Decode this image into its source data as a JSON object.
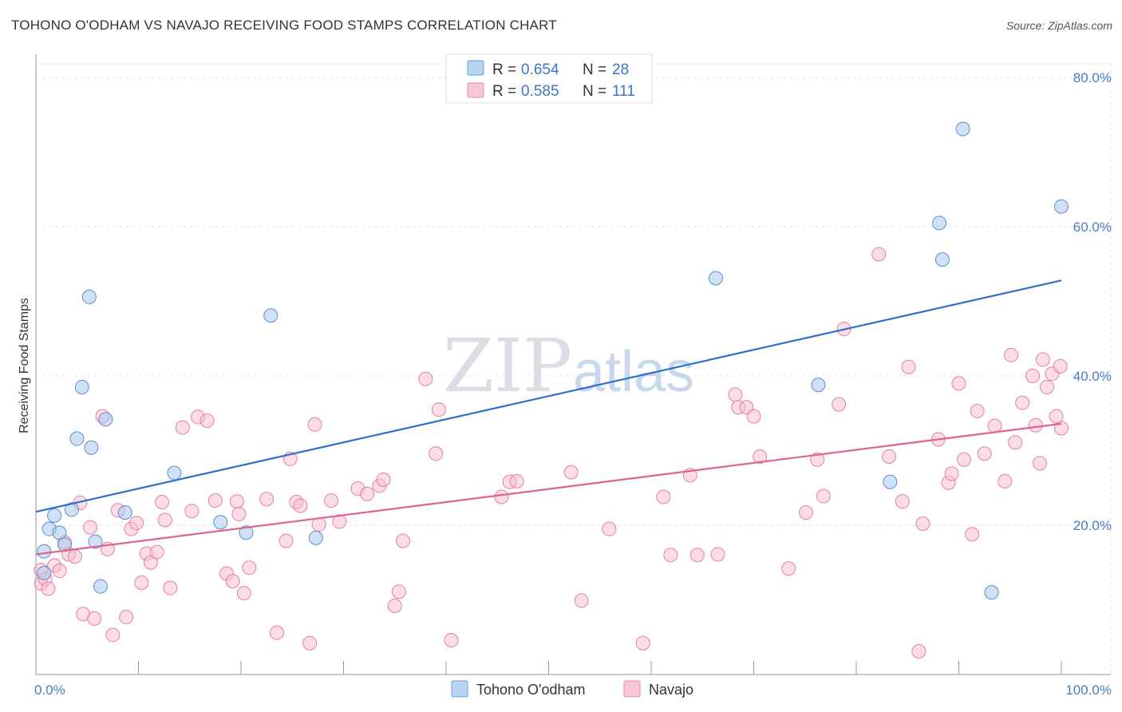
{
  "title": "TOHONO O'ODHAM VS NAVAJO RECEIVING FOOD STAMPS CORRELATION CHART",
  "source": "Source: ZipAtlas.com",
  "watermark": {
    "zip": "ZIP",
    "atlas": "atlas"
  },
  "legend": {
    "rows": [
      {
        "r_label": "R =",
        "r_value": "0.654",
        "n_label": "N =",
        "n_value": "28"
      },
      {
        "r_label": "R =",
        "r_value": "0.585",
        "n_label": "N =",
        "n_value": "111"
      }
    ]
  },
  "chart_data": {
    "type": "scatter",
    "title": "TOHONO O'ODHAM VS NAVAJO RECEIVING FOOD STAMPS CORRELATION CHART",
    "xlabel": "",
    "ylabel": "Receiving Food Stamps",
    "xlim": [
      0,
      100
    ],
    "ylim": [
      0,
      80
    ],
    "x_tick_labels": [
      "0.0%",
      "100.0%"
    ],
    "y_ticks": [
      20,
      40,
      60,
      80
    ],
    "y_tick_labels": [
      "20.0%",
      "40.0%",
      "60.0%",
      "80.0%"
    ],
    "grid": true,
    "legend_position": "top-center",
    "series": [
      {
        "name": "Tohono O'odham",
        "color": "#a9c8ee",
        "stroke": "#5a8fd0",
        "line_color": "#2f6fcc",
        "r": 0.654,
        "n": 28,
        "trend": {
          "x": [
            0,
            100
          ],
          "y": [
            21.8,
            52.8
          ]
        },
        "points": [
          [
            0.8,
            13.6
          ],
          [
            0.8,
            16.5
          ],
          [
            1.3,
            19.5
          ],
          [
            1.8,
            21.3
          ],
          [
            2.3,
            19.0
          ],
          [
            2.8,
            17.4
          ],
          [
            3.5,
            22.1
          ],
          [
            4.0,
            31.6
          ],
          [
            4.5,
            38.5
          ],
          [
            5.2,
            50.6
          ],
          [
            5.4,
            30.4
          ],
          [
            5.8,
            17.8
          ],
          [
            6.3,
            11.8
          ],
          [
            6.8,
            34.2
          ],
          [
            8.7,
            21.7
          ],
          [
            13.5,
            27.0
          ],
          [
            18.0,
            20.4
          ],
          [
            20.5,
            19.0
          ],
          [
            22.9,
            48.1
          ],
          [
            27.3,
            18.3
          ],
          [
            66.3,
            53.1
          ],
          [
            76.3,
            38.8
          ],
          [
            83.3,
            25.8
          ],
          [
            88.1,
            60.5
          ],
          [
            88.4,
            55.6
          ],
          [
            90.4,
            73.1
          ],
          [
            93.2,
            11.0
          ],
          [
            100.0,
            62.7
          ]
        ]
      },
      {
        "name": "Navajo",
        "color": "#f7c1d2",
        "stroke": "#e87ea1",
        "line_color": "#e0628e",
        "r": 0.585,
        "n": 111,
        "trend": {
          "x": [
            0,
            100
          ],
          "y": [
            16.1,
            33.6
          ]
        },
        "points": [
          [
            0.5,
            12.2
          ],
          [
            0.5,
            14.0
          ],
          [
            0.9,
            12.8
          ],
          [
            1.2,
            11.5
          ],
          [
            1.8,
            14.6
          ],
          [
            2.3,
            13.9
          ],
          [
            2.8,
            17.7
          ],
          [
            3.2,
            16.1
          ],
          [
            3.8,
            15.8
          ],
          [
            4.3,
            23.0
          ],
          [
            4.6,
            8.1
          ],
          [
            5.3,
            19.7
          ],
          [
            5.7,
            7.5
          ],
          [
            6.5,
            34.6
          ],
          [
            7.0,
            16.8
          ],
          [
            7.5,
            5.3
          ],
          [
            8.0,
            22.0
          ],
          [
            8.8,
            7.7
          ],
          [
            9.3,
            19.5
          ],
          [
            9.8,
            20.3
          ],
          [
            10.3,
            12.3
          ],
          [
            10.8,
            16.2
          ],
          [
            11.2,
            15.0
          ],
          [
            11.8,
            16.4
          ],
          [
            12.3,
            23.1
          ],
          [
            12.6,
            20.7
          ],
          [
            13.1,
            11.6
          ],
          [
            14.3,
            33.1
          ],
          [
            15.2,
            21.9
          ],
          [
            15.8,
            34.5
          ],
          [
            16.7,
            34.0
          ],
          [
            17.5,
            23.3
          ],
          [
            18.6,
            13.5
          ],
          [
            19.2,
            12.5
          ],
          [
            19.6,
            23.2
          ],
          [
            19.8,
            21.5
          ],
          [
            20.3,
            10.9
          ],
          [
            20.8,
            14.3
          ],
          [
            22.5,
            23.5
          ],
          [
            23.5,
            5.6
          ],
          [
            24.4,
            17.9
          ],
          [
            24.8,
            28.9
          ],
          [
            25.4,
            23.1
          ],
          [
            25.8,
            22.6
          ],
          [
            26.7,
            4.2
          ],
          [
            27.2,
            33.5
          ],
          [
            27.6,
            20.1
          ],
          [
            28.8,
            23.3
          ],
          [
            29.6,
            20.5
          ],
          [
            31.4,
            24.9
          ],
          [
            32.3,
            24.2
          ],
          [
            33.5,
            25.3
          ],
          [
            33.9,
            26.1
          ],
          [
            35.0,
            9.2
          ],
          [
            35.4,
            11.1
          ],
          [
            35.8,
            17.9
          ],
          [
            38.0,
            39.6
          ],
          [
            39.0,
            29.6
          ],
          [
            39.3,
            35.5
          ],
          [
            40.5,
            4.6
          ],
          [
            45.4,
            23.8
          ],
          [
            46.2,
            25.8
          ],
          [
            46.9,
            25.9
          ],
          [
            52.2,
            27.1
          ],
          [
            53.2,
            9.9
          ],
          [
            55.9,
            19.5
          ],
          [
            59.2,
            4.2
          ],
          [
            61.2,
            23.8
          ],
          [
            61.9,
            16.0
          ],
          [
            63.8,
            26.7
          ],
          [
            64.5,
            16.0
          ],
          [
            66.5,
            16.1
          ],
          [
            68.2,
            37.5
          ],
          [
            68.5,
            35.8
          ],
          [
            69.3,
            35.8
          ],
          [
            70.0,
            34.6
          ],
          [
            70.6,
            29.2
          ],
          [
            73.4,
            14.2
          ],
          [
            75.1,
            21.7
          ],
          [
            76.2,
            28.8
          ],
          [
            76.8,
            23.9
          ],
          [
            78.3,
            36.2
          ],
          [
            78.8,
            46.3
          ],
          [
            82.2,
            56.3
          ],
          [
            83.2,
            29.2
          ],
          [
            84.5,
            23.2
          ],
          [
            85.1,
            41.2
          ],
          [
            86.1,
            3.1
          ],
          [
            86.5,
            20.2
          ],
          [
            88.0,
            31.5
          ],
          [
            89.0,
            25.7
          ],
          [
            89.3,
            26.9
          ],
          [
            90.0,
            39.0
          ],
          [
            90.5,
            28.8
          ],
          [
            91.3,
            18.8
          ],
          [
            91.8,
            35.3
          ],
          [
            92.5,
            29.6
          ],
          [
            93.5,
            33.3
          ],
          [
            94.5,
            25.9
          ],
          [
            95.1,
            42.8
          ],
          [
            95.5,
            31.1
          ],
          [
            96.2,
            36.4
          ],
          [
            97.2,
            40.0
          ],
          [
            97.5,
            33.4
          ],
          [
            98.2,
            42.2
          ],
          [
            98.6,
            38.5
          ],
          [
            99.1,
            40.3
          ],
          [
            99.5,
            34.6
          ],
          [
            99.9,
            41.3
          ],
          [
            100.0,
            33.0
          ],
          [
            97.9,
            28.3
          ]
        ]
      }
    ]
  }
}
